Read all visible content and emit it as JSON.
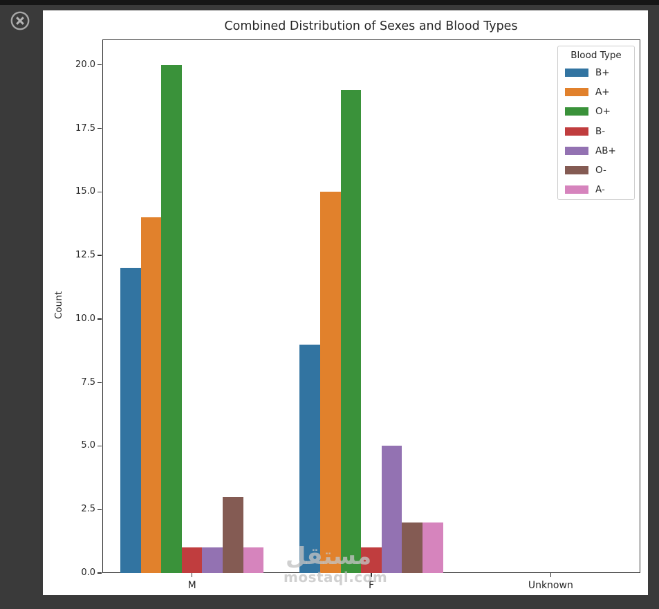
{
  "window": {
    "background_color": "#3a3a3a",
    "topbar_color": "#161616",
    "close_icon_color": "#a6a6a6"
  },
  "watermark": {
    "logo_text": "مستقل",
    "site": "mostaql.com"
  },
  "chart_data": {
    "type": "bar",
    "title": "Combined Distribution of Sexes and Blood Types",
    "xlabel": "",
    "ylabel": "Count",
    "categories": [
      "M",
      "F",
      "Unknown"
    ],
    "series": [
      {
        "name": "B+",
        "color": "#3274a1",
        "values": [
          12,
          9,
          0
        ]
      },
      {
        "name": "A+",
        "color": "#e1812c",
        "values": [
          14,
          15,
          0
        ]
      },
      {
        "name": "O+",
        "color": "#3a923a",
        "values": [
          20,
          19,
          0
        ]
      },
      {
        "name": "B-",
        "color": "#c03d3e",
        "values": [
          1,
          1,
          0
        ]
      },
      {
        "name": "AB+",
        "color": "#9372b2",
        "values": [
          1,
          5,
          0
        ]
      },
      {
        "name": "O-",
        "color": "#845b53",
        "values": [
          3,
          2,
          0
        ]
      },
      {
        "name": "A-",
        "color": "#d684bd",
        "values": [
          1,
          2,
          0
        ]
      }
    ],
    "ylim": [
      0,
      21
    ],
    "yticks": [
      0.0,
      2.5,
      5.0,
      7.5,
      10.0,
      12.5,
      15.0,
      17.5,
      20.0
    ],
    "ytick_labels": [
      "0.0",
      "2.5",
      "5.0",
      "7.5",
      "10.0",
      "12.5",
      "15.0",
      "17.5",
      "20.0"
    ],
    "legend_title": "Blood Type",
    "legend_position": "upper right",
    "grid": false,
    "group_width_fraction": 0.8
  }
}
